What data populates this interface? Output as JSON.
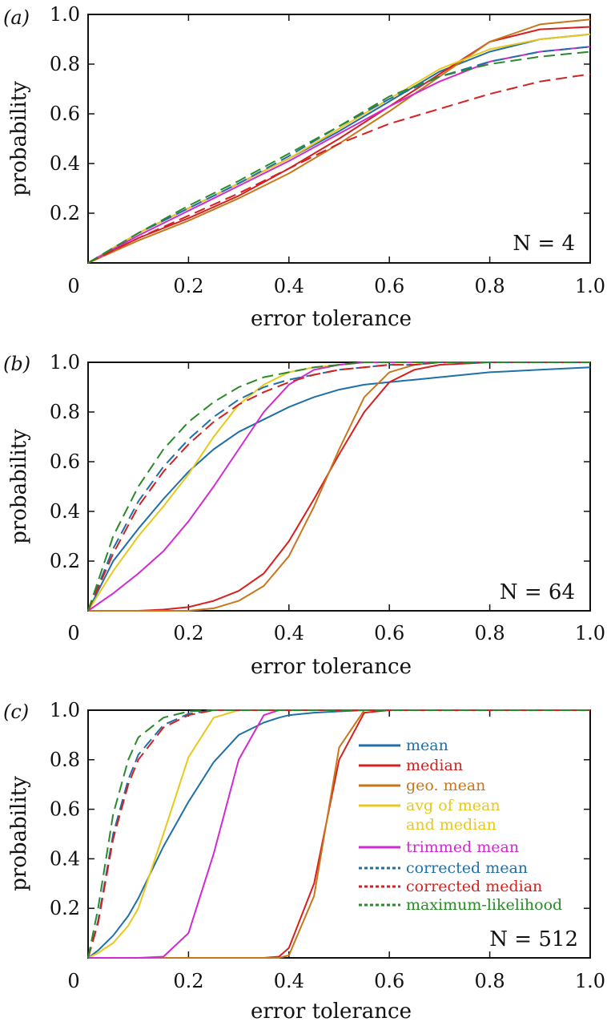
{
  "chart_data": [
    {
      "type": "line",
      "panel_label": "(a)",
      "annotation": "N = 4",
      "xlabel": "error tolerance",
      "ylabel": "probability",
      "xlim": [
        0,
        1
      ],
      "ylim": [
        0,
        1
      ],
      "xticks": [
        "0",
        "0.2",
        "0.4",
        "0.6",
        "0.8",
        "1.0"
      ],
      "yticks": [
        "0.2",
        "0.4",
        "0.6",
        "0.8",
        "1.0"
      ],
      "x": [
        0,
        0.1,
        0.2,
        0.3,
        0.4,
        0.5,
        0.6,
        0.7,
        0.8,
        0.9,
        1.0
      ],
      "series": [
        {
          "name": "mean",
          "color": "#1f6fa8",
          "dash": false,
          "values": [
            0,
            0.12,
            0.22,
            0.32,
            0.42,
            0.53,
            0.65,
            0.77,
            0.85,
            0.9,
            0.92
          ]
        },
        {
          "name": "median",
          "color": "#d62020",
          "dash": false,
          "values": [
            0,
            0.1,
            0.18,
            0.27,
            0.38,
            0.5,
            0.63,
            0.76,
            0.89,
            0.94,
            0.95
          ]
        },
        {
          "name": "geo. mean",
          "color": "#c8761a",
          "dash": false,
          "values": [
            0,
            0.09,
            0.17,
            0.26,
            0.36,
            0.48,
            0.61,
            0.75,
            0.89,
            0.96,
            0.98
          ]
        },
        {
          "name": "avg of mean and median",
          "color": "#e8c81a",
          "dash": false,
          "values": [
            0,
            0.12,
            0.22,
            0.32,
            0.42,
            0.54,
            0.66,
            0.78,
            0.86,
            0.9,
            0.92
          ]
        },
        {
          "name": "trimmed mean",
          "color": "#d22ad2",
          "dash": false,
          "values": [
            0,
            0.11,
            0.21,
            0.31,
            0.41,
            0.52,
            0.63,
            0.73,
            0.81,
            0.85,
            0.87
          ]
        },
        {
          "name": "corrected mean",
          "color": "#1f6fa8",
          "dash": true,
          "values": [
            0,
            0.12,
            0.22,
            0.32,
            0.43,
            0.55,
            0.66,
            0.75,
            0.81,
            0.85,
            0.87
          ]
        },
        {
          "name": "corrected median",
          "color": "#d62020",
          "dash": true,
          "values": [
            0,
            0.1,
            0.19,
            0.28,
            0.38,
            0.48,
            0.56,
            0.62,
            0.68,
            0.73,
            0.76
          ]
        },
        {
          "name": "maximum-likelihood",
          "color": "#2a8a2a",
          "dash": true,
          "values": [
            0,
            0.12,
            0.23,
            0.33,
            0.44,
            0.55,
            0.67,
            0.75,
            0.8,
            0.83,
            0.85
          ]
        }
      ]
    },
    {
      "type": "line",
      "panel_label": "(b)",
      "annotation": "N = 64",
      "xlabel": "error tolerance",
      "ylabel": "probability",
      "xlim": [
        0,
        1
      ],
      "ylim": [
        0,
        1
      ],
      "xticks": [
        "0",
        "0.2",
        "0.4",
        "0.6",
        "0.8",
        "1.0"
      ],
      "yticks": [
        "0.2",
        "0.4",
        "0.6",
        "0.8",
        "1.0"
      ],
      "x": [
        0,
        0.05,
        0.1,
        0.15,
        0.2,
        0.25,
        0.3,
        0.35,
        0.4,
        0.45,
        0.5,
        0.55,
        0.6,
        0.65,
        0.7,
        0.8,
        0.9,
        1.0
      ],
      "series": [
        {
          "name": "mean",
          "color": "#1f6fa8",
          "dash": false,
          "values": [
            0,
            0.2,
            0.33,
            0.45,
            0.56,
            0.65,
            0.72,
            0.77,
            0.82,
            0.86,
            0.89,
            0.91,
            0.92,
            0.93,
            0.94,
            0.96,
            0.97,
            0.98
          ]
        },
        {
          "name": "median",
          "color": "#d62020",
          "dash": false,
          "values": [
            0,
            0,
            0,
            0.005,
            0.015,
            0.04,
            0.08,
            0.15,
            0.28,
            0.45,
            0.63,
            0.8,
            0.92,
            0.97,
            0.99,
            1,
            1,
            1
          ]
        },
        {
          "name": "geo. mean",
          "color": "#c8761a",
          "dash": false,
          "values": [
            0,
            0,
            0,
            0,
            0,
            0.01,
            0.04,
            0.1,
            0.22,
            0.42,
            0.65,
            0.86,
            0.96,
            0.99,
            1,
            1,
            1,
            1
          ]
        },
        {
          "name": "avg of mean and median",
          "color": "#e8c81a",
          "dash": false,
          "values": [
            0,
            0.16,
            0.3,
            0.42,
            0.55,
            0.7,
            0.83,
            0.91,
            0.96,
            0.98,
            0.99,
            1,
            1,
            1,
            1,
            1,
            1,
            1
          ]
        },
        {
          "name": "trimmed mean",
          "color": "#d22ad2",
          "dash": false,
          "values": [
            0,
            0.07,
            0.15,
            0.24,
            0.36,
            0.5,
            0.65,
            0.8,
            0.91,
            0.97,
            0.99,
            1,
            1,
            1,
            1,
            1,
            1,
            1
          ]
        },
        {
          "name": "corrected mean",
          "color": "#1f6fa8",
          "dash": true,
          "values": [
            0,
            0.25,
            0.44,
            0.58,
            0.69,
            0.78,
            0.85,
            0.9,
            0.93,
            0.95,
            0.97,
            0.98,
            0.99,
            0.99,
            1,
            1,
            1,
            1
          ]
        },
        {
          "name": "corrected median",
          "color": "#d62020",
          "dash": true,
          "values": [
            0,
            0.23,
            0.42,
            0.56,
            0.67,
            0.76,
            0.83,
            0.88,
            0.92,
            0.95,
            0.97,
            0.98,
            0.99,
            0.99,
            1,
            1,
            1,
            1
          ]
        },
        {
          "name": "maximum-likelihood",
          "color": "#2a8a2a",
          "dash": true,
          "values": [
            0,
            0.3,
            0.5,
            0.65,
            0.76,
            0.84,
            0.9,
            0.94,
            0.96,
            0.98,
            0.99,
            1,
            1,
            1,
            1,
            1,
            1,
            1
          ]
        }
      ]
    },
    {
      "type": "line",
      "panel_label": "(c)",
      "annotation": "N = 512",
      "xlabel": "error tolerance",
      "ylabel": "probability",
      "xlim": [
        0,
        1
      ],
      "ylim": [
        0,
        1
      ],
      "xticks": [
        "0",
        "0.2",
        "0.4",
        "0.6",
        "0.8",
        "1.0"
      ],
      "yticks": [
        "0.2",
        "0.4",
        "0.6",
        "0.8",
        "1.0"
      ],
      "legend_position": "right",
      "x": [
        0,
        0.02,
        0.05,
        0.08,
        0.1,
        0.15,
        0.2,
        0.25,
        0.3,
        0.35,
        0.38,
        0.4,
        0.45,
        0.5,
        0.55,
        0.6,
        0.8,
        1.0
      ],
      "series": [
        {
          "name": "mean",
          "color": "#1f6fa8",
          "dash": false,
          "values": [
            0,
            0.03,
            0.09,
            0.17,
            0.24,
            0.45,
            0.63,
            0.79,
            0.9,
            0.95,
            0.97,
            0.98,
            0.99,
            0.995,
            1,
            1,
            1,
            1
          ]
        },
        {
          "name": "median",
          "color": "#d62020",
          "dash": false,
          "values": [
            0,
            0,
            0,
            0,
            0,
            0,
            0,
            0,
            0,
            0,
            0.005,
            0.04,
            0.3,
            0.8,
            0.99,
            1,
            1,
            1
          ]
        },
        {
          "name": "geo. mean",
          "color": "#c8761a",
          "dash": false,
          "values": [
            0,
            0,
            0,
            0,
            0,
            0,
            0,
            0,
            0,
            0,
            0,
            0.01,
            0.25,
            0.85,
            1,
            1,
            1,
            1
          ]
        },
        {
          "name": "avg of mean and median",
          "color": "#e8c81a",
          "dash": false,
          "values": [
            0,
            0.02,
            0.06,
            0.13,
            0.2,
            0.5,
            0.81,
            0.97,
            1,
            1,
            1,
            1,
            1,
            1,
            1,
            1,
            1,
            1
          ]
        },
        {
          "name": "trimmed mean",
          "color": "#d22ad2",
          "dash": false,
          "values": [
            0,
            0,
            0,
            0,
            0,
            0.005,
            0.1,
            0.42,
            0.8,
            0.98,
            1,
            1,
            1,
            1,
            1,
            1,
            1,
            1
          ]
        },
        {
          "name": "corrected mean",
          "color": "#1f6fa8",
          "dash": true,
          "values": [
            0,
            0.15,
            0.5,
            0.72,
            0.82,
            0.94,
            0.985,
            1,
            1,
            1,
            1,
            1,
            1,
            1,
            1,
            1,
            1,
            1
          ]
        },
        {
          "name": "corrected median",
          "color": "#d62020",
          "dash": true,
          "values": [
            0,
            0.14,
            0.48,
            0.7,
            0.8,
            0.93,
            0.98,
            1,
            1,
            1,
            1,
            1,
            1,
            1,
            1,
            1,
            1,
            1
          ]
        },
        {
          "name": "maximum-likelihood",
          "color": "#2a8a2a",
          "dash": true,
          "values": [
            0,
            0.2,
            0.58,
            0.8,
            0.89,
            0.97,
            0.995,
            1,
            1,
            1,
            1,
            1,
            1,
            1,
            1,
            1,
            1,
            1
          ]
        }
      ],
      "legend": [
        {
          "label": "mean",
          "color": "#1f6fa8",
          "dash": false
        },
        {
          "label": "median",
          "color": "#d62020",
          "dash": false
        },
        {
          "label": "geo. mean",
          "color": "#c8761a",
          "dash": false
        },
        {
          "label": "avg of mean",
          "label2": "and median",
          "color": "#e8c81a",
          "dash": false
        },
        {
          "label": "trimmed mean",
          "color": "#d22ad2",
          "dash": false
        },
        {
          "label": "corrected mean",
          "color": "#1f6fa8",
          "dash": true
        },
        {
          "label": "corrected median",
          "color": "#d62020",
          "dash": true
        },
        {
          "label": "maximum-likelihood",
          "color": "#2a8a2a",
          "dash": true
        }
      ]
    }
  ]
}
